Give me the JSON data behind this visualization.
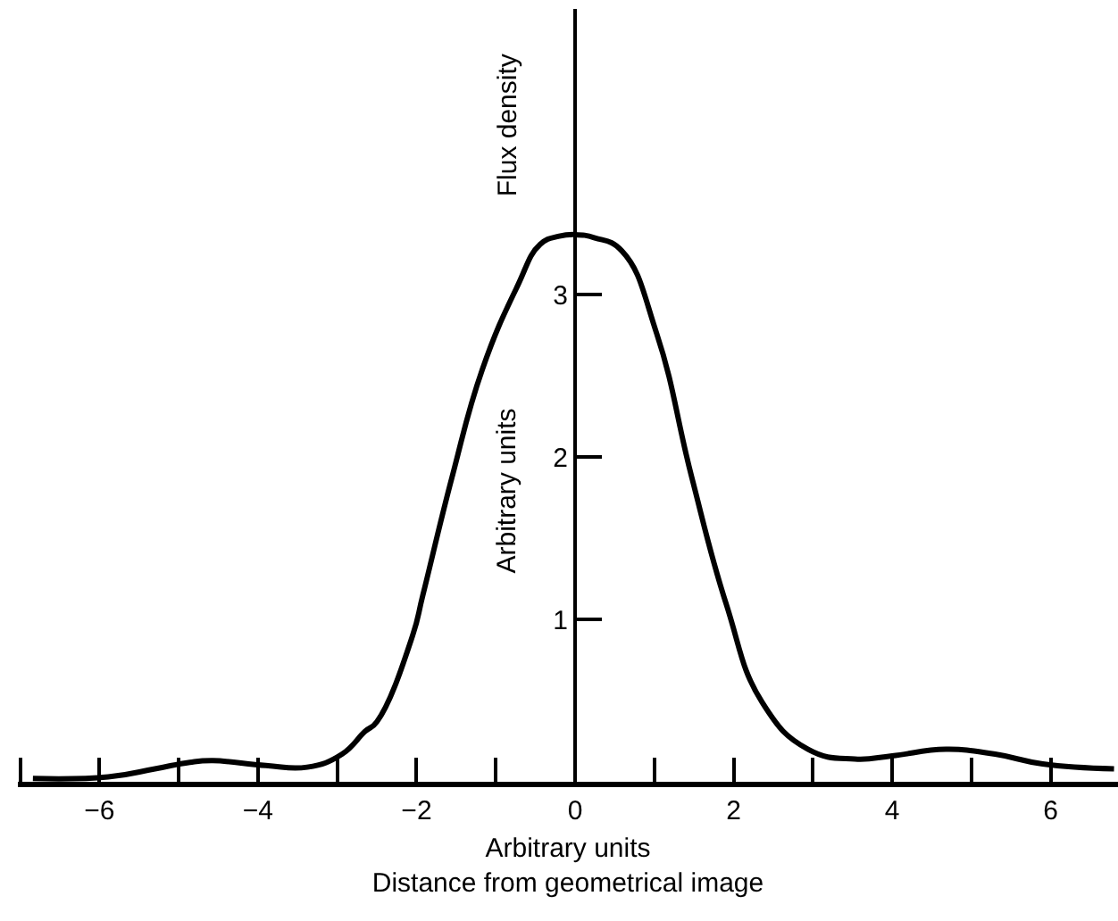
{
  "chart_data": {
    "type": "line",
    "xlabel": "Arbitrary units\nDistance from geometrical image",
    "ylabel": "Arbitrary units",
    "annotations": [
      "Flux density"
    ],
    "x": [
      -6.84,
      -5.89,
      -5.3,
      -4.86,
      -4.57,
      -3.9,
      -3.38,
      -2.94,
      -2.65,
      -2.5,
      -2.05,
      -1.92,
      -1.55,
      -1.17,
      -0.73,
      -0.44,
      -0.2,
      0,
      0.25,
      0.59,
      1.03,
      1.47,
      1.91,
      2.36,
      2.94,
      3.53,
      4.0,
      4.68,
      5.3,
      5.9,
      6.8
    ],
    "series": [
      {
        "color": "#000000",
        "values": [
          0.02,
          0.03,
          0.08,
          0.12,
          0.13,
          0.1,
          0.09,
          0.17,
          0.31,
          0.37,
          0.9,
          1.15,
          1.88,
          2.54,
          3.05,
          3.31,
          3.36,
          3.37,
          3.35,
          3.27,
          2.76,
          1.88,
          1.09,
          0.49,
          0.2,
          0.14,
          0.16,
          0.2,
          0.17,
          0.11,
          0.08
        ]
      }
    ],
    "xlim": [
      -7.03,
      6.85
    ],
    "ylim": [
      0,
      4.76
    ],
    "xticks": [
      {
        "value": -7,
        "label": null
      },
      -6,
      {
        "value": -5,
        "label": null
      },
      -4,
      {
        "value": -3,
        "label": null
      },
      -2,
      {
        "value": -1,
        "label": null
      },
      0,
      {
        "value": 1,
        "label": null
      },
      2,
      {
        "value": 3,
        "label": null
      },
      4,
      {
        "value": 5,
        "label": null
      },
      6
    ],
    "yticks": [
      1,
      2,
      3
    ],
    "marker": "none",
    "line_style": "solid"
  }
}
